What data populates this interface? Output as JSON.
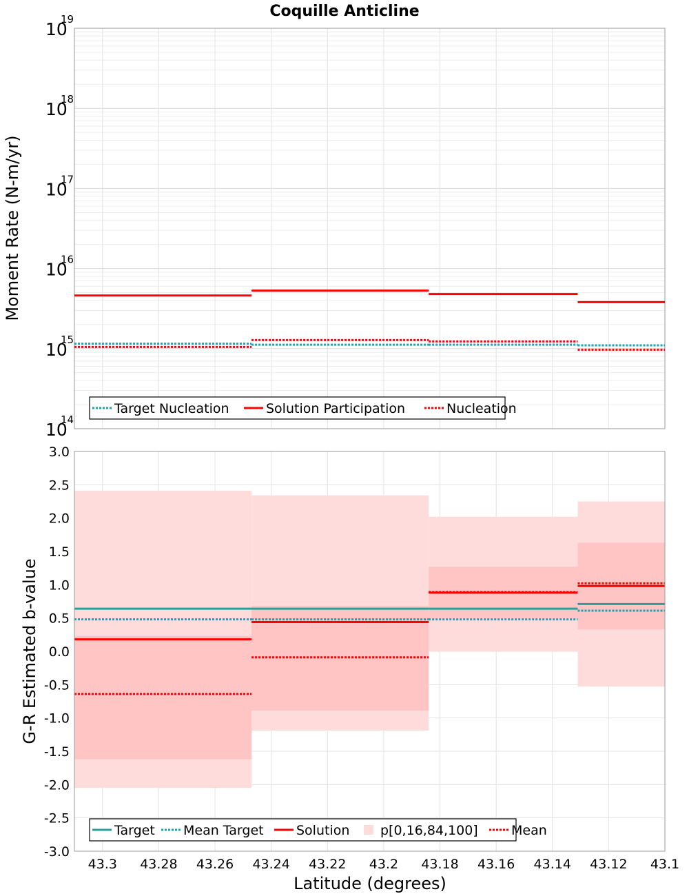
{
  "title": "Coquille Anticline",
  "chart_data": [
    {
      "type": "line",
      "step": true,
      "xlabel": "",
      "ylabel": "Moment Rate (N-m/yr)",
      "yscale": "log",
      "ylim": [
        100000000000000.0,
        1e+19
      ],
      "xlim": [
        43.31,
        43.1
      ],
      "ytick_labels": [
        {
          "base": "10",
          "exp": "14"
        },
        {
          "base": "10",
          "exp": "15"
        },
        {
          "base": "10",
          "exp": "16"
        },
        {
          "base": "10",
          "exp": "17"
        },
        {
          "base": "10",
          "exp": "18"
        },
        {
          "base": "10",
          "exp": "19"
        }
      ],
      "bins": [
        [
          43.31,
          43.247
        ],
        [
          43.247,
          43.184
        ],
        [
          43.184,
          43.131
        ],
        [
          43.131,
          43.1
        ]
      ],
      "series": [
        {
          "name": "Target Nucleation",
          "style": "dotted",
          "color": "#1aa3b3",
          "values": [
            1150000000000000.0,
            1120000000000000.0,
            1120000000000000.0,
            1100000000000000.0
          ]
        },
        {
          "name": "Solution Participation",
          "style": "solid",
          "color": "#ff0000",
          "values": [
            4600000000000000.0,
            5300000000000000.0,
            4800000000000000.0,
            3800000000000000.0
          ]
        },
        {
          "name": "Nucleation",
          "style": "dotted",
          "color": "#ff0000",
          "values": [
            1050000000000000.0,
            1280000000000000.0,
            1230000000000000.0,
            970000000000000.0
          ]
        }
      ],
      "legend": {
        "position": "bottom-left",
        "items": [
          "Target Nucleation",
          "Solution Participation",
          "Nucleation"
        ]
      },
      "grid": true
    },
    {
      "type": "line",
      "step": true,
      "xlabel": "Latitude (degrees)",
      "ylabel": "G-R Estimated b-value",
      "ylim": [
        -3.0,
        3.0
      ],
      "xlim": [
        43.31,
        43.1
      ],
      "yticks": [
        "-3.0",
        "-2.5",
        "-2.0",
        "-1.5",
        "-1.0",
        "-0.5",
        "0.0",
        "0.5",
        "1.0",
        "1.5",
        "2.0",
        "2.5",
        "3.0"
      ],
      "xticks": [
        "43.3",
        "43.28",
        "43.26",
        "43.24",
        "43.22",
        "43.2",
        "43.18",
        "43.16",
        "43.14",
        "43.12",
        "43.1"
      ],
      "bins": [
        [
          43.31,
          43.247
        ],
        [
          43.247,
          43.184
        ],
        [
          43.184,
          43.131
        ],
        [
          43.131,
          43.1
        ]
      ],
      "bands": [
        {
          "range": "p0-p100",
          "color": "#ffdcdc",
          "low": [
            -2.05,
            -1.19,
            0.0,
            -0.53
          ],
          "high": [
            2.41,
            2.34,
            2.02,
            2.25
          ]
        },
        {
          "range": "p16-p84",
          "color": "#ffc4c4",
          "low": [
            -1.62,
            -0.89,
            0.5,
            0.33
          ],
          "high": [
            0.23,
            0.68,
            1.27,
            1.63
          ]
        }
      ],
      "series": [
        {
          "name": "Target",
          "style": "solid",
          "color": "#2a9d9d",
          "values": [
            0.64,
            0.64,
            0.64,
            0.71
          ]
        },
        {
          "name": "Mean Target",
          "style": "dotted",
          "color": "#1aa3b3",
          "values": [
            0.48,
            0.48,
            0.48,
            0.61
          ]
        },
        {
          "name": "Solution",
          "style": "solid",
          "color": "#ff0000",
          "values": [
            0.18,
            0.44,
            0.88,
            0.98
          ]
        },
        {
          "name": "Mean",
          "style": "dotted",
          "color": "#ff0000",
          "values": [
            -0.64,
            -0.09,
            0.89,
            1.02
          ]
        }
      ],
      "legend": {
        "position": "bottom-left",
        "items": [
          "Target",
          "Mean Target",
          "Solution",
          "p[0,16,84,100]",
          "Mean"
        ]
      },
      "grid": true
    }
  ]
}
